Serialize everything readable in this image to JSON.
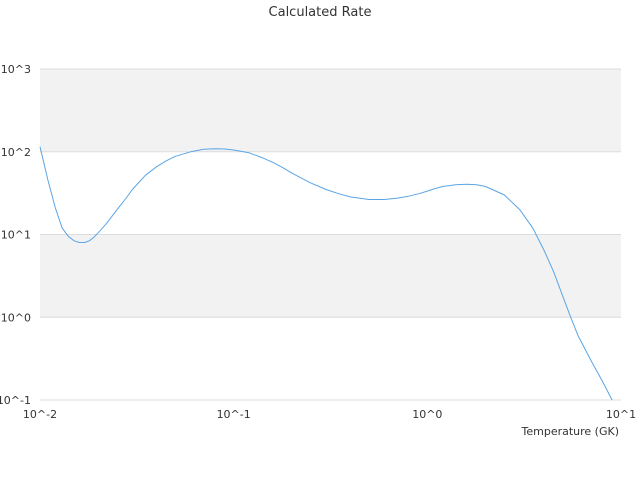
{
  "chart_data": {
    "type": "line",
    "title": "Calculated Rate",
    "xlabel": "Temperature (GK)",
    "ylabel": "",
    "x_scale": "log",
    "y_scale": "log",
    "xlim": [
      0.01,
      10
    ],
    "ylim": [
      0.1,
      1000
    ],
    "x_tick_labels": [
      "10^-2",
      "10^-1",
      "10^0",
      "10^1"
    ],
    "y_tick_labels": [
      "10^-1",
      "10^0",
      "10^1",
      "10^2",
      "10^3"
    ],
    "grid": "horizontal bands",
    "legend": "none",
    "colors": {
      "line": "#5aa5e6",
      "band": "#f2f2f2",
      "gridline": "#dcdcdc",
      "text": "#333333"
    },
    "series": [
      {
        "x": [
          0.01,
          0.011,
          0.012,
          0.013,
          0.014,
          0.015,
          0.016,
          0.017,
          0.018,
          0.019,
          0.02,
          0.022,
          0.025,
          0.028,
          0.03,
          0.035,
          0.04,
          0.045,
          0.05,
          0.06,
          0.07,
          0.08,
          0.09,
          0.1,
          0.12,
          0.14,
          0.16,
          0.18,
          0.2,
          0.25,
          0.3,
          0.35,
          0.4,
          0.5,
          0.6,
          0.7,
          0.8,
          0.9,
          1.0,
          1.1,
          1.2,
          1.4,
          1.6,
          1.8,
          2.0,
          2.5,
          3.0,
          3.5,
          4.0,
          4.5,
          5.0,
          5.5,
          6.0,
          7.0,
          8.0,
          9.0
        ],
        "y": [
          115,
          45,
          21,
          12,
          9.5,
          8.4,
          8.0,
          8.0,
          8.4,
          9.3,
          10.5,
          13.5,
          20,
          28,
          35,
          52,
          66,
          78,
          88,
          100,
          107,
          109,
          108,
          105,
          97,
          85,
          74,
          64,
          55,
          42,
          35,
          31,
          28.5,
          26.5,
          26.5,
          27.5,
          29,
          31,
          33.5,
          36,
          38,
          40,
          40.5,
          40,
          38,
          30,
          20,
          12,
          6.5,
          3.5,
          1.8,
          1.0,
          0.6,
          0.3,
          0.17,
          0.1
        ]
      }
    ]
  }
}
